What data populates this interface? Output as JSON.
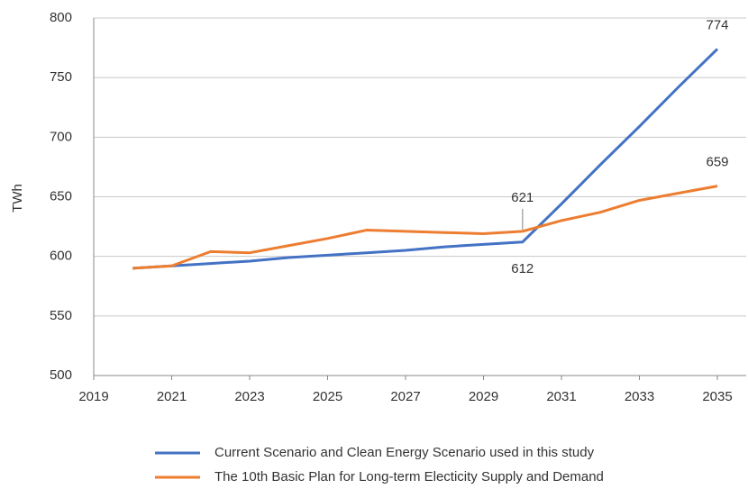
{
  "chart_data": {
    "type": "line",
    "y_label": "TWh",
    "x": [
      2020,
      2021,
      2022,
      2023,
      2024,
      2025,
      2026,
      2027,
      2028,
      2029,
      2030,
      2031,
      2032,
      2033,
      2034,
      2035
    ],
    "xlim": [
      2019,
      2035
    ],
    "xticks": [
      2019,
      2021,
      2023,
      2025,
      2027,
      2029,
      2031,
      2033,
      2035
    ],
    "ylim": [
      500,
      800
    ],
    "yticks": [
      500,
      550,
      600,
      650,
      700,
      750,
      800
    ],
    "grid": true,
    "series": [
      {
        "name": "Current Scenario and Clean Energy Scenario used in this study",
        "color": "#4472c4",
        "values": [
          590,
          592,
          594,
          596,
          599,
          601,
          603,
          605,
          608,
          610,
          612,
          644,
          677,
          709,
          742,
          774
        ],
        "value_labels": [
          null,
          null,
          null,
          null,
          null,
          null,
          null,
          null,
          null,
          null,
          "612",
          null,
          null,
          null,
          null,
          "774"
        ]
      },
      {
        "name": "The 10th Basic Plan for Long-term Electicity Supply and Demand",
        "color": "#ed7d31",
        "values": [
          590,
          592,
          604,
          603,
          609,
          615,
          622,
          621,
          620,
          619,
          621,
          630,
          637,
          647,
          653,
          659
        ],
        "value_labels": [
          null,
          null,
          null,
          null,
          null,
          null,
          null,
          null,
          null,
          null,
          "621",
          null,
          null,
          null,
          null,
          "659"
        ]
      }
    ]
  }
}
